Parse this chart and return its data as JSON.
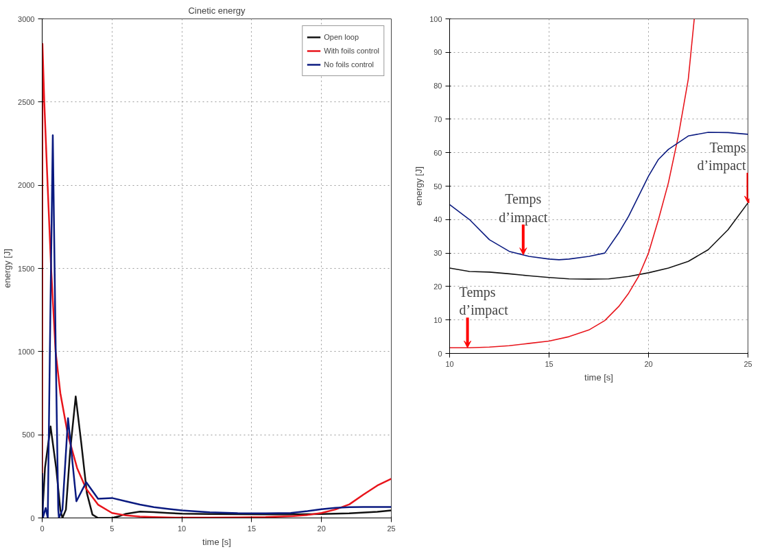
{
  "chart_data": [
    {
      "type": "line",
      "title": "Cinetic energy",
      "xlabel": "time [s]",
      "ylabel": "energy [J]",
      "xlim": [
        0,
        25
      ],
      "ylim": [
        0,
        3000
      ],
      "xticks": [
        0,
        5,
        10,
        15,
        20,
        25
      ],
      "yticks": [
        0,
        500,
        1000,
        1500,
        2000,
        2500,
        3000
      ],
      "grid": true,
      "legend": "top right",
      "line_style": "solid",
      "series": [
        {
          "name": "Open loop",
          "color": "#111111",
          "x": [
            0,
            0.2,
            0.6,
            1.0,
            1.3,
            1.45,
            1.7,
            2.0,
            2.4,
            2.8,
            3.2,
            3.6,
            4,
            5,
            5.5,
            6,
            7,
            8,
            9,
            10,
            12,
            14,
            16,
            18,
            20,
            22,
            24,
            25
          ],
          "values": [
            0,
            300,
            550,
            300,
            50,
            0,
            50,
            400,
            730,
            450,
            150,
            20,
            0,
            0,
            10,
            25,
            38,
            35,
            30,
            26,
            24,
            23,
            22,
            22,
            24,
            28,
            37,
            45
          ]
        },
        {
          "name": "With foils control",
          "color": "#e8141b",
          "x": [
            0,
            0.02,
            0.15,
            0.39,
            0.64,
            0.96,
            1.3,
            1.84,
            2.5,
            3.15,
            4,
            5,
            6,
            7,
            8,
            9,
            10,
            12,
            14,
            16,
            18,
            19,
            20,
            21,
            22,
            23,
            24,
            25
          ],
          "values": [
            0,
            2850,
            2500,
            2000,
            1500,
            1000,
            750,
            500,
            300,
            175,
            80,
            30,
            15,
            8,
            5,
            3,
            2,
            2,
            3,
            5,
            11,
            18,
            30,
            51,
            82,
            140,
            195,
            235
          ]
        },
        {
          "name": "No foils control",
          "color": "#0a1a80",
          "x": [
            0,
            0.05,
            0.25,
            0.4,
            0.55,
            0.76,
            0.97,
            1.15,
            1.2,
            1.45,
            1.85,
            2.45,
            3.15,
            4,
            5,
            6,
            7,
            8,
            9,
            10,
            12,
            14,
            16,
            17.8,
            19,
            20,
            21,
            22,
            23,
            25
          ],
          "values": [
            270,
            0,
            60,
            0,
            1000,
            2300,
            1000,
            50,
            0,
            50,
            600,
            100,
            215,
            115,
            120,
            100,
            80,
            65,
            55,
            45,
            34,
            29,
            28,
            30,
            41,
            53,
            61,
            65,
            66,
            66
          ]
        }
      ]
    },
    {
      "type": "line",
      "xlabel": "time [s]",
      "ylabel": "energy [J]",
      "xlim": [
        10,
        25
      ],
      "ylim": [
        0,
        100
      ],
      "xticks": [
        10,
        15,
        20,
        25
      ],
      "yticks": [
        0,
        10,
        20,
        30,
        40,
        50,
        60,
        70,
        80,
        90,
        100
      ],
      "grid": true,
      "line_style": "solid",
      "series": [
        {
          "color": "#111111",
          "x": [
            10,
            11,
            12,
            13,
            14,
            15,
            16,
            17,
            18,
            19,
            20,
            21,
            22,
            23,
            24,
            25
          ],
          "values": [
            25.5,
            24.5,
            24.3,
            23.8,
            23.2,
            22.7,
            22.3,
            22.2,
            22.3,
            23,
            24.1,
            25.5,
            27.5,
            31,
            37,
            45
          ]
        },
        {
          "color": "#e8141b",
          "x": [
            10,
            11,
            12,
            13,
            14,
            15,
            16,
            17,
            17.8,
            18.5,
            19,
            19.5,
            20,
            20.5,
            21,
            21.5,
            22,
            22.3
          ],
          "values": [
            1.7,
            1.7,
            1.9,
            2.3,
            3,
            3.7,
            5,
            7,
            9.8,
            14,
            18,
            23,
            30,
            40,
            51,
            65,
            82,
            100
          ]
        },
        {
          "color": "#0a1a80",
          "x": [
            10,
            11,
            12,
            13,
            14,
            15,
            15.5,
            16,
            17,
            17.8,
            18.5,
            19,
            19.5,
            20,
            20.5,
            21,
            21.5,
            22,
            23,
            24,
            25
          ],
          "values": [
            44.5,
            40,
            34,
            30.5,
            29,
            28.2,
            28,
            28.2,
            29,
            30,
            36,
            41,
            47,
            53,
            58,
            61,
            63,
            65,
            66.1,
            66,
            65.5
          ]
        }
      ],
      "annotations": [
        {
          "text": "Temps\nd’impact",
          "x": 10.9,
          "y": 1.7
        },
        {
          "text": "Temps\nd’impact",
          "x": 13.7,
          "y": 29.5
        },
        {
          "text": "Temps\nd’impact",
          "x": 25,
          "y": 45
        }
      ]
    }
  ]
}
